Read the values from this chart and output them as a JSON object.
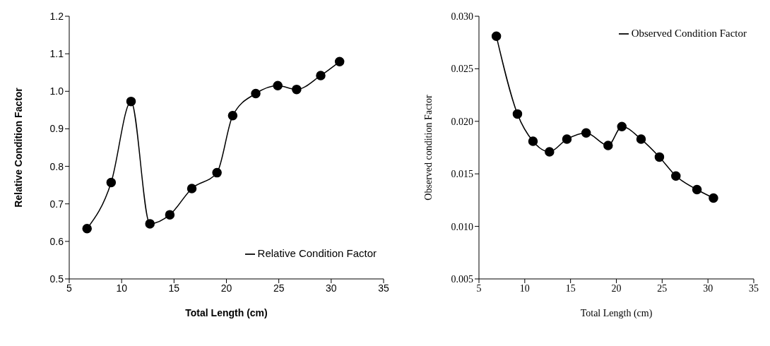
{
  "chart_data": [
    {
      "type": "line",
      "xlabel": "Total Length (cm)",
      "ylabel": "Relative Condition Factor",
      "x": [
        6.7,
        9.0,
        10.9,
        12.7,
        14.6,
        16.7,
        19.1,
        20.6,
        22.8,
        24.9,
        26.7,
        29.0,
        30.8
      ],
      "series": [
        {
          "name": "Relative Condition Factor",
          "color": "#000000",
          "values": [
            0.634,
            0.757,
            0.973,
            0.647,
            0.671,
            0.741,
            0.783,
            0.935,
            0.994,
            1.015,
            1.005,
            1.042,
            1.079
          ]
        }
      ],
      "xlim": [
        5,
        35
      ],
      "xticks": [
        5,
        10,
        15,
        20,
        25,
        30,
        35
      ],
      "ylim": [
        0.5,
        1.2
      ],
      "yticks": [
        0.5,
        0.6,
        0.7,
        0.8,
        0.9,
        {
          "value": 1.0,
          "label": "1.0"
        },
        1.1,
        1.2
      ],
      "grid": false,
      "legend": "bottom right",
      "marker": "circle",
      "line_style": "solid"
    },
    {
      "type": "line",
      "xlabel": "Total Length (cm)",
      "ylabel": "Observed condition Factor",
      "x": [
        6.9,
        9.2,
        10.9,
        12.7,
        14.6,
        16.7,
        19.1,
        20.6,
        22.7,
        24.7,
        26.5,
        28.8,
        30.6
      ],
      "series": [
        {
          "name": "Observed Condition Factor",
          "color": "#000000",
          "values": [
            0.0281,
            0.0207,
            0.0181,
            0.0171,
            0.0183,
            0.0189,
            0.0177,
            0.0195,
            0.0183,
            0.0166,
            0.0148,
            0.0135,
            0.0127
          ]
        }
      ],
      "xlim": [
        5,
        35
      ],
      "xticks": [
        5,
        10,
        15,
        20,
        25,
        30,
        35
      ],
      "ylim": [
        0.005,
        0.03
      ],
      "yticks": [
        0.005,
        {
          "value": 0.01,
          "label": "0.010"
        },
        0.015,
        {
          "value": 0.02,
          "label": "0.020"
        },
        0.025,
        {
          "value": 0.03,
          "label": "0.030"
        }
      ],
      "grid": false,
      "legend": "top right",
      "marker": "circle",
      "line_style": "solid"
    }
  ]
}
